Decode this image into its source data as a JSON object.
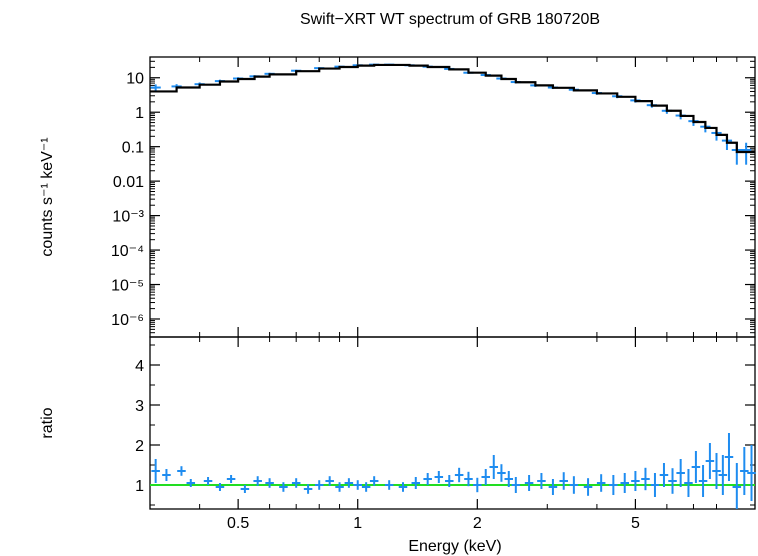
{
  "chart_data": {
    "title": "Swift−XRT WT spectrum of GRB 180720B",
    "xlabel": "Energy (keV)",
    "x_scale": "log",
    "xlim": [
      0.3,
      10
    ],
    "x_ticks": [
      0.5,
      1,
      2,
      5
    ],
    "x_tick_labels": [
      "0.5",
      "1",
      "2",
      "5"
    ],
    "colors": {
      "data": "#1e8cf0",
      "model": "#000000",
      "ratio_line": "#22dd22",
      "frame": "#000000"
    },
    "panels": [
      {
        "type": "scatter",
        "name": "spectrum",
        "ylabel": "counts s⁻¹ keV⁻¹",
        "y_scale": "log",
        "ylim": [
          3e-07,
          40
        ],
        "y_ticks": [
          10,
          1,
          0.1,
          0.01,
          0.001,
          0.0001,
          1e-05,
          1e-06
        ],
        "y_tick_labels": [
          "10",
          "1",
          "0.1",
          "0.01",
          "10⁻³",
          "10⁻⁴",
          "10⁻⁵",
          "10⁻⁶"
        ],
        "series": [
          {
            "kind": "data",
            "x": [
              0.31,
              0.35,
              0.4,
              0.45,
              0.5,
              0.55,
              0.6,
              0.7,
              0.8,
              0.9,
              1.0,
              1.1,
              1.2,
              1.35,
              1.5,
              1.7,
              1.9,
              2.1,
              2.3,
              2.5,
              2.8,
              3.1,
              3.5,
              4.0,
              4.5,
              5.0,
              5.5,
              6.0,
              6.5,
              7.0,
              7.5,
              8.0,
              8.5,
              9.0,
              9.5
            ],
            "y": [
              5.2,
              5.6,
              6.5,
              8.0,
              9.5,
              11,
              13,
              16,
              19,
              21,
              23,
              24,
              24,
              23,
              21,
              18,
              14,
              12,
              9.5,
              7.5,
              6.0,
              5.2,
              4.5,
              3.6,
              2.9,
              2.2,
              1.6,
              1.1,
              0.8,
              0.55,
              0.38,
              0.25,
              0.15,
              0.08,
              0.08
            ],
            "yerr": [
              1.2,
              0.9,
              0.8,
              0.8,
              0.9,
              0.9,
              1.0,
              1.1,
              1.2,
              1.2,
              1.3,
              1.3,
              1.3,
              1.3,
              1.2,
              1.1,
              1.0,
              0.9,
              0.8,
              0.7,
              0.6,
              0.5,
              0.5,
              0.4,
              0.35,
              0.3,
              0.25,
              0.2,
              0.18,
              0.15,
              0.12,
              0.1,
              0.07,
              0.05,
              0.05
            ]
          },
          {
            "kind": "model",
            "x": [
              0.3,
              0.35,
              0.4,
              0.45,
              0.5,
              0.55,
              0.6,
              0.7,
              0.8,
              0.9,
              1.0,
              1.1,
              1.2,
              1.35,
              1.5,
              1.7,
              1.9,
              2.1,
              2.3,
              2.5,
              2.8,
              3.1,
              3.5,
              4.0,
              4.5,
              5.0,
              5.5,
              6.0,
              6.5,
              7.0,
              7.5,
              8.0,
              8.5,
              9.0,
              9.5,
              10.0
            ],
            "y": [
              4.0,
              5.2,
              6.3,
              7.8,
              9.2,
              10.8,
              12.5,
              15.5,
              18.5,
              20.5,
              22.5,
              23.5,
              23.5,
              22.5,
              20.5,
              17.5,
              14,
              11.5,
              9.2,
              7.4,
              6.0,
              5.1,
              4.3,
              3.5,
              2.8,
              2.1,
              1.55,
              1.1,
              0.78,
              0.52,
              0.35,
              0.22,
              0.13,
              0.07,
              0.07,
              0.07
            ]
          }
        ]
      },
      {
        "type": "scatter",
        "name": "ratio",
        "ylabel": "ratio",
        "y_scale": "linear",
        "ylim": [
          0.4,
          4.7
        ],
        "y_ticks": [
          1,
          2,
          3,
          4
        ],
        "y_tick_labels": [
          "1",
          "2",
          "3",
          "4"
        ],
        "reference_line": 1,
        "series": [
          {
            "kind": "data",
            "x": [
              0.31,
              0.33,
              0.36,
              0.38,
              0.42,
              0.45,
              0.48,
              0.52,
              0.56,
              0.6,
              0.65,
              0.7,
              0.75,
              0.8,
              0.85,
              0.9,
              0.95,
              1.0,
              1.05,
              1.1,
              1.2,
              1.3,
              1.4,
              1.5,
              1.6,
              1.7,
              1.8,
              1.9,
              2.0,
              2.1,
              2.2,
              2.3,
              2.4,
              2.5,
              2.7,
              2.9,
              3.1,
              3.3,
              3.5,
              3.8,
              4.1,
              4.4,
              4.7,
              5.0,
              5.3,
              5.6,
              5.9,
              6.2,
              6.5,
              6.8,
              7.1,
              7.4,
              7.7,
              8.0,
              8.3,
              8.6,
              9.0,
              9.4,
              9.8
            ],
            "y": [
              1.35,
              1.25,
              1.35,
              1.05,
              1.1,
              0.95,
              1.15,
              0.9,
              1.1,
              1.05,
              0.95,
              1.05,
              0.9,
              1.0,
              1.1,
              0.95,
              1.05,
              1.0,
              0.95,
              1.1,
              1.0,
              0.95,
              1.05,
              1.15,
              1.2,
              1.1,
              1.25,
              1.15,
              1.0,
              1.2,
              1.45,
              1.3,
              1.15,
              1.0,
              1.05,
              1.1,
              0.95,
              1.1,
              1.0,
              0.95,
              1.05,
              1.0,
              1.05,
              1.1,
              1.15,
              1.0,
              1.25,
              1.1,
              1.3,
              1.05,
              1.45,
              1.1,
              1.6,
              1.35,
              1.25,
              1.7,
              0.95,
              1.35,
              1.3
            ],
            "yerr": [
              0.3,
              0.15,
              0.12,
              0.1,
              0.1,
              0.1,
              0.1,
              0.1,
              0.12,
              0.12,
              0.12,
              0.12,
              0.12,
              0.12,
              0.12,
              0.12,
              0.12,
              0.12,
              0.12,
              0.12,
              0.12,
              0.12,
              0.15,
              0.15,
              0.15,
              0.15,
              0.18,
              0.18,
              0.18,
              0.2,
              0.3,
              0.22,
              0.2,
              0.2,
              0.2,
              0.2,
              0.2,
              0.22,
              0.22,
              0.22,
              0.22,
              0.25,
              0.25,
              0.25,
              0.28,
              0.3,
              0.3,
              0.32,
              0.35,
              0.35,
              0.4,
              0.4,
              0.45,
              0.45,
              0.5,
              0.6,
              0.6,
              0.6,
              0.7
            ]
          }
        ]
      }
    ]
  }
}
